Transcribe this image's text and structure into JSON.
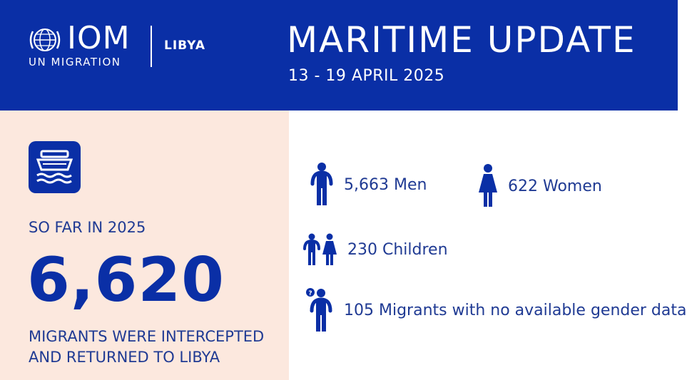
{
  "header": {
    "logo": {
      "name": "IOM",
      "subtitle": "UN MIGRATION"
    },
    "country": "LIBYA",
    "title": "MARITIME UPDATE",
    "date_range": "13 - 19 APRIL 2025"
  },
  "summary": {
    "icon": "boat-icon",
    "label": "SO FAR IN 2025",
    "total": "6,620",
    "description_line1": "MIGRANTS WERE INTERCEPTED",
    "description_line2": "AND RETURNED TO LIBYA"
  },
  "breakdown": {
    "men": "5,663 Men",
    "women": "622 Women",
    "children": "230 Children",
    "unknown": "105 Migrants with no available gender data"
  },
  "colors": {
    "brand_blue": "#0a2fa6",
    "panel_bg": "#fce8de",
    "text_blue": "#1f3a93"
  }
}
